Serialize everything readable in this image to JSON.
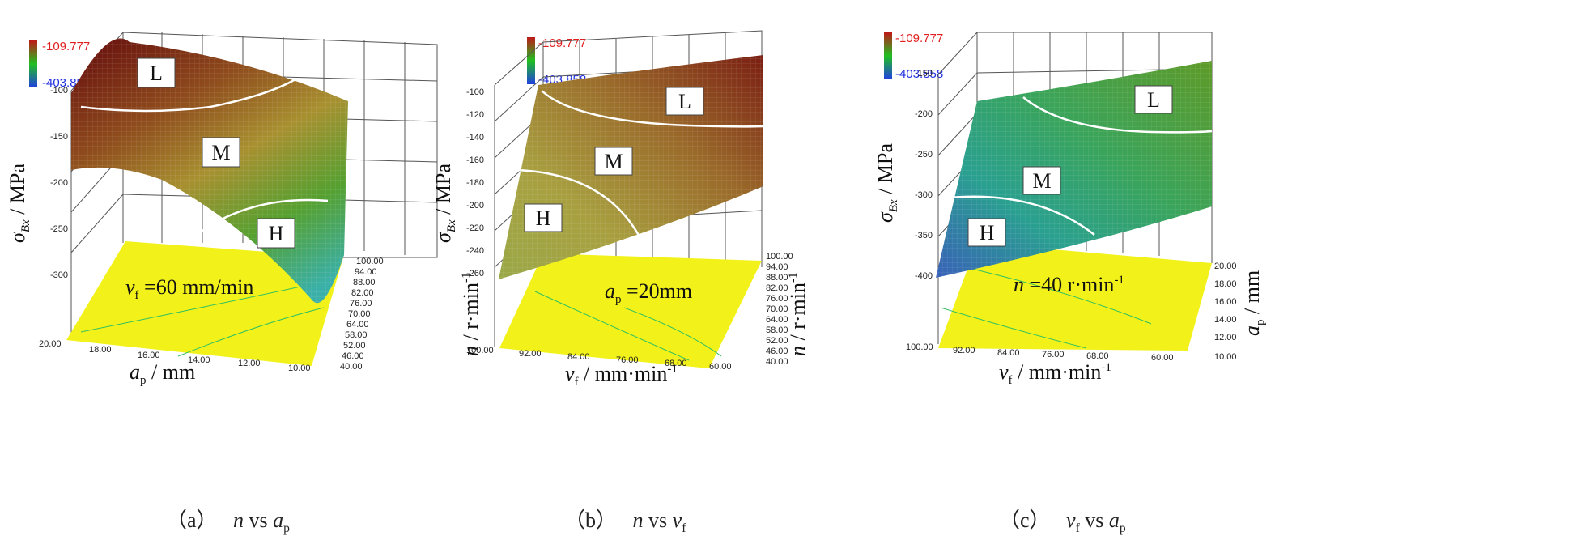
{
  "colorbar": {
    "max": "-109.777",
    "min": "-403.858",
    "max_color": "#e02020",
    "min_color": "#2030e0"
  },
  "chart_data": [
    {
      "type": "surface",
      "caption": {
        "label": "（a）",
        "text": "n vs a",
        "sub": "p"
      },
      "zlabel": "σ Bx / MPa",
      "xlabel": "a p / mm",
      "ylabel": "n / r·min⁻¹",
      "condition": "v f =60 mm/min",
      "z_ticks": [
        "-100",
        "-150",
        "-200",
        "-250",
        "-300"
      ],
      "x_ticks": [
        "20.00",
        "18.00",
        "16.00",
        "14.00",
        "12.00",
        "10.00"
      ],
      "y_ticks": [
        "40.00",
        "46.00",
        "52.00",
        "58.00",
        "64.00",
        "70.00",
        "76.00",
        "82.00",
        "88.00",
        "94.00",
        "100.00"
      ],
      "regions": [
        "L",
        "M",
        "H"
      ],
      "surface_colors": [
        "#7a1a10",
        "#9a5a20",
        "#b0a030",
        "#4a9a30",
        "#40b0a0"
      ]
    },
    {
      "type": "surface",
      "caption": {
        "label": "（b）",
        "text": "n vs v",
        "sub": "f"
      },
      "zlabel": "σ Bx / MPa",
      "xlabel": "v f / mm·min⁻¹",
      "ylabel": "n / r·min⁻¹",
      "condition": "a p =20mm",
      "z_ticks": [
        "-100",
        "-120",
        "-140",
        "-160",
        "-180",
        "-200",
        "-220",
        "-240",
        "-260"
      ],
      "x_ticks": [
        "100.00",
        "92.00",
        "84.00",
        "76.00",
        "68.00",
        "60.00"
      ],
      "y_ticks": [
        "40.00",
        "46.00",
        "52.00",
        "58.00",
        "64.00",
        "70.00",
        "76.00",
        "82.00",
        "88.00",
        "94.00",
        "100.00"
      ],
      "regions": [
        "L",
        "M",
        "H"
      ],
      "surface_colors": [
        "#8a2a18",
        "#a07030",
        "#a8a040",
        "#9aa040"
      ]
    },
    {
      "type": "surface",
      "caption": {
        "label": "（c）",
        "text": "v vs a",
        "sub1": "f",
        "sub2": "p"
      },
      "zlabel": "σ Bx / MPa",
      "xlabel": "v f / mm·min⁻¹",
      "ylabel": "a p / mm",
      "condition": "n =40 r·min⁻¹",
      "z_ticks": [
        "-150",
        "-200",
        "-250",
        "-300",
        "-350",
        "-400"
      ],
      "x_ticks": [
        "100.00",
        "92.00",
        "84.00",
        "76.00",
        "68.00",
        "60.00"
      ],
      "y_ticks": [
        "10.00",
        "12.00",
        "14.00",
        "16.00",
        "18.00",
        "20.00"
      ],
      "regions": [
        "L",
        "M",
        "H"
      ],
      "surface_colors": [
        "#5a9a30",
        "#3aa060",
        "#30a090",
        "#3070b0"
      ]
    }
  ]
}
